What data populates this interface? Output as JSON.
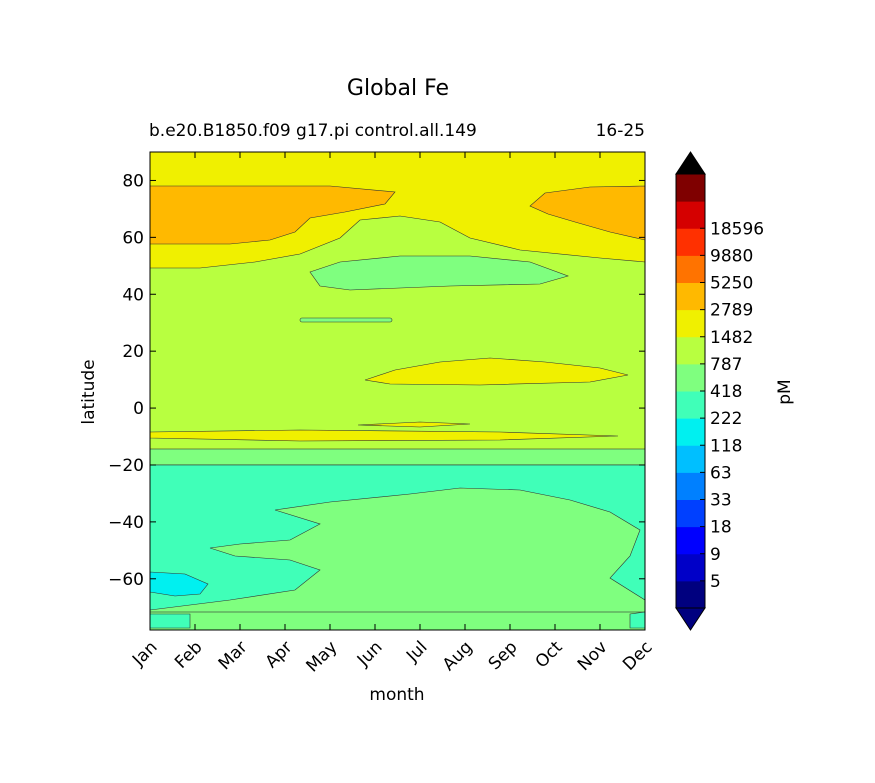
{
  "chart_data": {
    "type": "heatmap",
    "title": "Global Fe",
    "subtitle_left": "b.e20.B1850.f09 g17.pi control.all.149",
    "subtitle_right": "16-25",
    "xlabel": "month",
    "ylabel": "latitude",
    "x_categories": [
      "Jan",
      "Feb",
      "Mar",
      "Apr",
      "May",
      "Jun",
      "Jul",
      "Aug",
      "Sep",
      "Oct",
      "Nov",
      "Dec"
    ],
    "yticks": [
      80,
      60,
      40,
      20,
      0,
      -20,
      -40,
      -60
    ],
    "ylim": [
      -78,
      90
    ],
    "colorbar": {
      "label": "pM",
      "levels": [
        "5",
        "9",
        "18",
        "33",
        "63",
        "118",
        "222",
        "418",
        "787",
        "1482",
        "2789",
        "5250",
        "9880",
        "18596"
      ],
      "colors": [
        "#00007f",
        "#0000c8",
        "#0000ff",
        "#0040ff",
        "#0080ff",
        "#00bfff",
        "#00f0f0",
        "#40ffb8",
        "#7fff7f",
        "#b8ff40",
        "#f0f000",
        "#ffb900",
        "#ff7300",
        "#ff3000",
        "#d50000",
        "#7f0000"
      ],
      "extend_low_color": "#00007f",
      "extend_high_color": "#000000"
    },
    "regions": [
      {
        "name": "subtropical-north-band",
        "level_range": "787-1482",
        "color": "#b8ff40"
      },
      {
        "name": "arctic-band",
        "level_range": "1482-2789",
        "color": "#f0f000"
      },
      {
        "name": "high-latitude-winter-max",
        "level_range": "2789-5250",
        "color": "#ffb900"
      },
      {
        "name": "midlatitude-summer-min",
        "level_range": "418-787",
        "color": "#7fff7f"
      },
      {
        "name": "southern-ocean",
        "level_range": "222-418",
        "color": "#40ffb8"
      },
      {
        "name": "southern-subtropics",
        "level_range": "418-787",
        "color": "#7fff7f"
      },
      {
        "name": "high-south-min",
        "level_range": "118-222",
        "color": "#00f0f0"
      }
    ]
  }
}
